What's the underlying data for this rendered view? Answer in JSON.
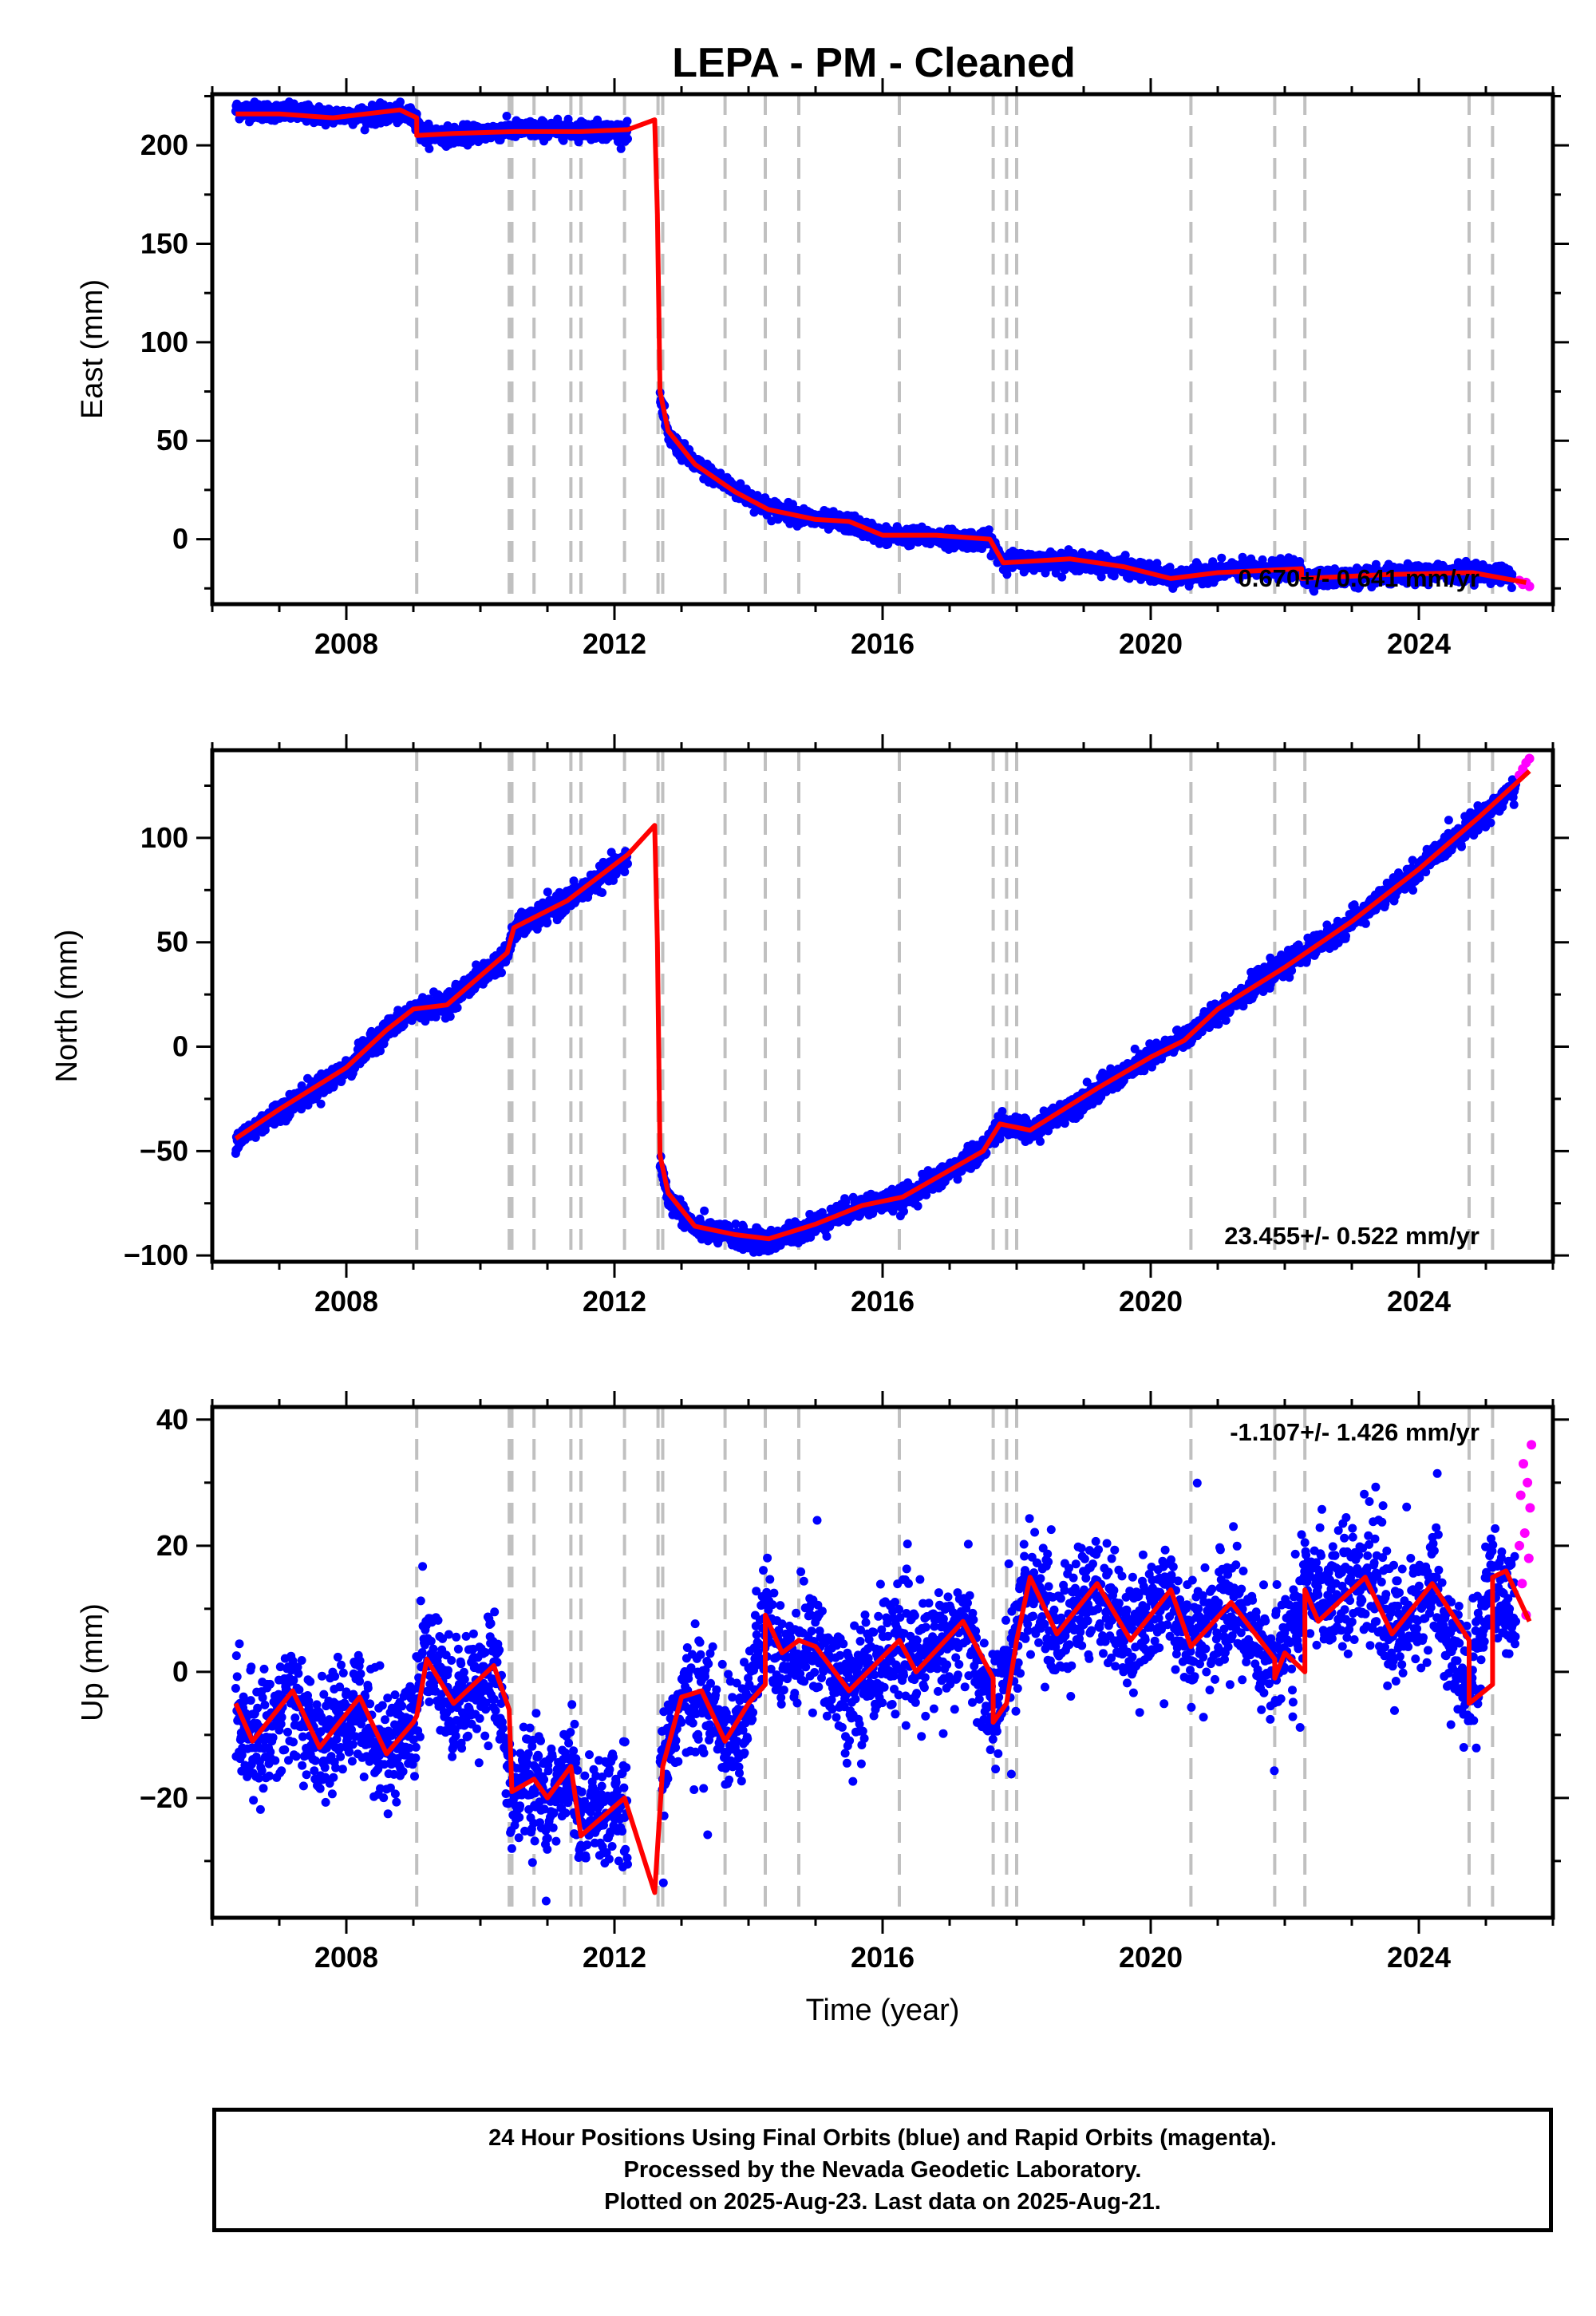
{
  "title": "LEPA  - PM - Cleaned",
  "footer": {
    "line1": "24 Hour Positions Using Final Orbits (blue) and Rapid Orbits (magenta).",
    "line2": "Processed by the Nevada Geodetic Laboratory.",
    "line3": "Plotted on 2025-Aug-23. Last data on 2025-Aug-21."
  },
  "colors": {
    "final": "#0000ff",
    "rapid": "#ff00ff",
    "model": "#ff0000",
    "steps": "#c0c0c0"
  },
  "chart_data": [
    {
      "type": "scatter",
      "panel": "East",
      "ylabel": "East (mm)",
      "xlabel": "",
      "rate_label": "0.670+/- 0.641 mm/yr",
      "xlim": [
        2006.0,
        2026.0
      ],
      "ylim": [
        -33,
        226
      ],
      "xticks": [
        2008,
        2012,
        2016,
        2020,
        2024
      ],
      "yticks": [
        0,
        50,
        100,
        150,
        200
      ],
      "step_epochs": [
        2009.05,
        2010.43,
        2010.47,
        2010.8,
        2011.35,
        2011.5,
        2012.15,
        2012.65,
        2012.72,
        2013.65,
        2014.25,
        2014.75,
        2016.25,
        2017.65,
        2017.85,
        2018.0,
        2020.6,
        2021.85,
        2022.3,
        2024.75,
        2025.1
      ],
      "model_line": [
        [
          2006.35,
          216
        ],
        [
          2007.0,
          216
        ],
        [
          2007.8,
          214
        ],
        [
          2008.8,
          218
        ],
        [
          2009.05,
          214
        ],
        [
          2009.05,
          205
        ],
        [
          2009.6,
          206
        ],
        [
          2010.5,
          207
        ],
        [
          2011.5,
          207
        ],
        [
          2012.2,
          208
        ],
        [
          2012.6,
          213
        ],
        [
          2012.64,
          165
        ],
        [
          2012.68,
          75
        ],
        [
          2012.8,
          55
        ],
        [
          2013.2,
          38
        ],
        [
          2013.8,
          24
        ],
        [
          2014.3,
          15
        ],
        [
          2015.0,
          10
        ],
        [
          2015.5,
          9
        ],
        [
          2016.0,
          2
        ],
        [
          2016.8,
          2
        ],
        [
          2017.6,
          0
        ],
        [
          2017.8,
          -12
        ],
        [
          2018.8,
          -10
        ],
        [
          2019.6,
          -14
        ],
        [
          2020.3,
          -20
        ],
        [
          2021.0,
          -17
        ],
        [
          2022.25,
          -15
        ],
        [
          2022.25,
          -20
        ],
        [
          2023.5,
          -18
        ],
        [
          2024.8,
          -17
        ],
        [
          2025.6,
          -22
        ]
      ],
      "final_trend": [
        [
          2006.35,
          218
        ],
        [
          2007.0,
          217
        ],
        [
          2007.8,
          215
        ],
        [
          2008.8,
          216
        ],
        [
          2009.05,
          214
        ],
        [
          2009.1,
          206
        ],
        [
          2009.6,
          205
        ],
        [
          2010.5,
          208
        ],
        [
          2011.5,
          208
        ],
        [
          2012.2,
          207
        ],
        [
          2012.68,
          72
        ],
        [
          2012.8,
          52
        ],
        [
          2013.2,
          38
        ],
        [
          2013.8,
          25
        ],
        [
          2014.3,
          16
        ],
        [
          2015.0,
          10
        ],
        [
          2015.5,
          8
        ],
        [
          2016.0,
          2
        ],
        [
          2016.8,
          1
        ],
        [
          2017.6,
          -1
        ],
        [
          2017.8,
          -11
        ],
        [
          2018.8,
          -11
        ],
        [
          2019.6,
          -14
        ],
        [
          2020.3,
          -20
        ],
        [
          2021.0,
          -16
        ],
        [
          2022.25,
          -15
        ],
        [
          2022.3,
          -20
        ],
        [
          2023.5,
          -19
        ],
        [
          2024.8,
          -16
        ],
        [
          2025.4,
          -19
        ]
      ],
      "final_scatter_mm": 2.2,
      "rapid_points": [
        [
          2025.5,
          -21
        ],
        [
          2025.55,
          -23
        ],
        [
          2025.6,
          -22
        ],
        [
          2025.65,
          -24
        ]
      ]
    },
    {
      "type": "scatter",
      "panel": "North",
      "ylabel": "North (mm)",
      "xlabel": "",
      "rate_label": "23.455+/- 0.522 mm/yr",
      "xlim": [
        2006.0,
        2026.0
      ],
      "ylim": [
        -103,
        142
      ],
      "xticks": [
        2008,
        2012,
        2016,
        2020,
        2024
      ],
      "yticks": [
        -100,
        -50,
        0,
        50,
        100
      ],
      "step_epochs": [
        2009.05,
        2010.43,
        2010.47,
        2010.8,
        2011.35,
        2011.5,
        2012.15,
        2012.65,
        2012.72,
        2013.65,
        2014.25,
        2014.75,
        2016.25,
        2017.65,
        2017.85,
        2018.0,
        2020.6,
        2021.85,
        2022.3,
        2024.75,
        2025.1
      ],
      "model_line": [
        [
          2006.35,
          -44
        ],
        [
          2007.0,
          -30
        ],
        [
          2008.0,
          -10
        ],
        [
          2008.6,
          8
        ],
        [
          2009.0,
          18
        ],
        [
          2009.5,
          20
        ],
        [
          2010.4,
          45
        ],
        [
          2010.5,
          57
        ],
        [
          2011.3,
          70
        ],
        [
          2012.2,
          92
        ],
        [
          2012.6,
          106
        ],
        [
          2012.64,
          50
        ],
        [
          2012.68,
          -52
        ],
        [
          2012.8,
          -70
        ],
        [
          2013.2,
          -86
        ],
        [
          2013.8,
          -90
        ],
        [
          2014.3,
          -92
        ],
        [
          2015.0,
          -85
        ],
        [
          2015.7,
          -76
        ],
        [
          2016.3,
          -72
        ],
        [
          2017.5,
          -50
        ],
        [
          2017.75,
          -37
        ],
        [
          2018.2,
          -40
        ],
        [
          2019.2,
          -20
        ],
        [
          2020.0,
          -5
        ],
        [
          2020.5,
          3
        ],
        [
          2021.0,
          18
        ],
        [
          2022.0,
          38
        ],
        [
          2023.0,
          60
        ],
        [
          2024.0,
          85
        ],
        [
          2024.9,
          110
        ],
        [
          2025.65,
          132
        ]
      ],
      "final_trend": [
        [
          2006.35,
          -45
        ],
        [
          2007.0,
          -31
        ],
        [
          2008.0,
          -11
        ],
        [
          2008.6,
          8
        ],
        [
          2009.0,
          17
        ],
        [
          2009.5,
          21
        ],
        [
          2010.4,
          44
        ],
        [
          2010.5,
          56
        ],
        [
          2011.3,
          70
        ],
        [
          2012.2,
          90
        ],
        [
          2012.68,
          -55
        ],
        [
          2012.8,
          -72
        ],
        [
          2013.2,
          -87
        ],
        [
          2013.8,
          -91
        ],
        [
          2014.3,
          -94
        ],
        [
          2015.0,
          -85
        ],
        [
          2015.7,
          -76
        ],
        [
          2016.3,
          -73
        ],
        [
          2017.5,
          -50
        ],
        [
          2017.75,
          -36
        ],
        [
          2018.2,
          -41
        ],
        [
          2019.2,
          -21
        ],
        [
          2020.0,
          -5
        ],
        [
          2020.5,
          4
        ],
        [
          2021.0,
          17
        ],
        [
          2022.0,
          39
        ],
        [
          2023.0,
          60
        ],
        [
          2024.0,
          85
        ],
        [
          2024.9,
          110
        ],
        [
          2025.45,
          124
        ]
      ],
      "final_scatter_mm": 2.6,
      "rapid_points": [
        [
          2025.5,
          130
        ],
        [
          2025.55,
          133
        ],
        [
          2025.6,
          136
        ],
        [
          2025.65,
          138
        ]
      ]
    },
    {
      "type": "scatter",
      "panel": "Up",
      "ylabel": "Up (mm)",
      "xlabel": "Time (year)",
      "rate_label": "-1.107+/- 1.426 mm/yr",
      "xlim": [
        2006.0,
        2026.0
      ],
      "ylim": [
        -39,
        42
      ],
      "xticks": [
        2008,
        2012,
        2016,
        2020,
        2024
      ],
      "yticks": [
        -20,
        0,
        20,
        40
      ],
      "step_epochs": [
        2009.05,
        2010.43,
        2010.47,
        2010.8,
        2011.35,
        2011.5,
        2012.15,
        2012.65,
        2012.72,
        2013.65,
        2014.25,
        2014.75,
        2016.25,
        2017.65,
        2017.85,
        2018.0,
        2020.6,
        2021.85,
        2022.3,
        2024.75,
        2025.1
      ],
      "model_line": [
        [
          2006.35,
          -5
        ],
        [
          2006.6,
          -11
        ],
        [
          2007.2,
          -3
        ],
        [
          2007.6,
          -12
        ],
        [
          2008.2,
          -4
        ],
        [
          2008.6,
          -13
        ],
        [
          2009.0,
          -8
        ],
        [
          2009.05,
          -7
        ],
        [
          2009.2,
          2
        ],
        [
          2009.6,
          -5
        ],
        [
          2010.2,
          1
        ],
        [
          2010.43,
          -6
        ],
        [
          2010.47,
          -19
        ],
        [
          2010.8,
          -17
        ],
        [
          2011.0,
          -20
        ],
        [
          2011.35,
          -15
        ],
        [
          2011.5,
          -26
        ],
        [
          2012.15,
          -20
        ],
        [
          2012.3,
          -25
        ],
        [
          2012.6,
          -35
        ],
        [
          2012.72,
          -15
        ],
        [
          2013.0,
          -4
        ],
        [
          2013.3,
          -3
        ],
        [
          2013.65,
          -11
        ],
        [
          2014.0,
          -5
        ],
        [
          2014.25,
          -2
        ],
        [
          2014.25,
          9
        ],
        [
          2014.5,
          3
        ],
        [
          2014.75,
          5
        ],
        [
          2015.0,
          4
        ],
        [
          2015.5,
          -3
        ],
        [
          2016.25,
          5
        ],
        [
          2016.5,
          0
        ],
        [
          2017.2,
          8
        ],
        [
          2017.65,
          -1
        ],
        [
          2017.65,
          -8
        ],
        [
          2017.85,
          -5
        ],
        [
          2018.0,
          5
        ],
        [
          2018.2,
          15
        ],
        [
          2018.6,
          6
        ],
        [
          2019.2,
          14
        ],
        [
          2019.7,
          5
        ],
        [
          2020.3,
          13
        ],
        [
          2020.6,
          4
        ],
        [
          2021.2,
          11
        ],
        [
          2021.85,
          2
        ],
        [
          2021.85,
          -1
        ],
        [
          2022.0,
          3
        ],
        [
          2022.3,
          0
        ],
        [
          2022.3,
          13
        ],
        [
          2022.5,
          8
        ],
        [
          2023.2,
          15
        ],
        [
          2023.6,
          6
        ],
        [
          2024.2,
          14
        ],
        [
          2024.75,
          5
        ],
        [
          2024.75,
          -5
        ],
        [
          2025.1,
          -2
        ],
        [
          2025.1,
          15
        ],
        [
          2025.3,
          16
        ],
        [
          2025.65,
          8
        ]
      ],
      "final_trend": [
        [
          2006.35,
          -6
        ],
        [
          2006.6,
          -12
        ],
        [
          2007.2,
          -4
        ],
        [
          2007.6,
          -12
        ],
        [
          2008.2,
          -5
        ],
        [
          2008.6,
          -13
        ],
        [
          2009.0,
          -8
        ],
        [
          2009.2,
          3
        ],
        [
          2009.6,
          -5
        ],
        [
          2010.2,
          1
        ],
        [
          2010.47,
          -19
        ],
        [
          2010.8,
          -17
        ],
        [
          2011.0,
          -21
        ],
        [
          2011.35,
          -15
        ],
        [
          2011.5,
          -25
        ],
        [
          2012.15,
          -20
        ],
        [
          2012.3,
          -25
        ],
        [
          2012.72,
          -14
        ],
        [
          2013.0,
          -5
        ],
        [
          2013.3,
          -3
        ],
        [
          2013.65,
          -11
        ],
        [
          2014.0,
          -5
        ],
        [
          2014.25,
          8
        ],
        [
          2014.5,
          3
        ],
        [
          2015.0,
          4
        ],
        [
          2015.5,
          -3
        ],
        [
          2016.25,
          5
        ],
        [
          2016.5,
          1
        ],
        [
          2017.2,
          8
        ],
        [
          2017.65,
          -7
        ],
        [
          2018.0,
          5
        ],
        [
          2018.2,
          14
        ],
        [
          2018.6,
          6
        ],
        [
          2019.2,
          13
        ],
        [
          2019.7,
          5
        ],
        [
          2020.3,
          13
        ],
        [
          2020.6,
          5
        ],
        [
          2021.2,
          11
        ],
        [
          2021.85,
          1
        ],
        [
          2022.3,
          12
        ],
        [
          2023.2,
          15
        ],
        [
          2023.6,
          6
        ],
        [
          2024.2,
          13
        ],
        [
          2024.75,
          -4
        ],
        [
          2025.1,
          14
        ],
        [
          2025.45,
          12
        ]
      ],
      "final_scatter_mm": 4.5,
      "rapid_points": [
        [
          2025.5,
          20
        ],
        [
          2025.52,
          28
        ],
        [
          2025.54,
          14
        ],
        [
          2025.56,
          33
        ],
        [
          2025.58,
          22
        ],
        [
          2025.6,
          9
        ],
        [
          2025.62,
          30
        ],
        [
          2025.64,
          18
        ],
        [
          2025.66,
          26
        ],
        [
          2025.68,
          36
        ]
      ]
    }
  ]
}
